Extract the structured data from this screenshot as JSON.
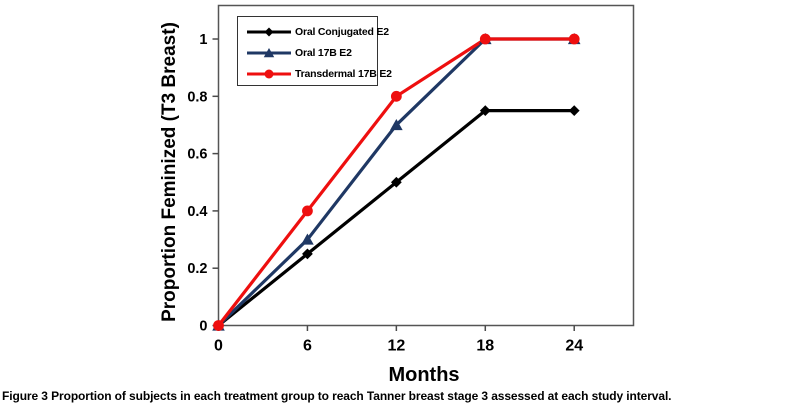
{
  "figure": {
    "caption_prefix": "Figure 3",
    "caption_text": " Proportion of subjects in each treatment group to reach Tanner breast stage 3 assessed at each study interval."
  },
  "chart_data": {
    "type": "line",
    "title": "",
    "xlabel": "Months",
    "ylabel": "Proportion Feminized (T3 Breast)",
    "x": [
      0,
      6,
      12,
      18,
      24
    ],
    "xticks": [
      0,
      6,
      12,
      18,
      24
    ],
    "xtick_labels": [
      "0",
      "6",
      "12",
      "18",
      "24"
    ],
    "yticks": [
      0,
      0.2,
      0.4,
      0.6,
      0.8,
      1
    ],
    "ytick_labels": [
      "0",
      "0.2",
      "0.4",
      "0.6",
      "0.8",
      "1"
    ],
    "xlim": [
      0,
      28
    ],
    "ylim": [
      0,
      1.117
    ],
    "grid": false,
    "legend_position": "top-left",
    "series": [
      {
        "name": "Oral Conjugated E2",
        "color": "#000000",
        "marker": "diamond",
        "values": [
          0,
          0.25,
          0.5,
          0.75,
          0.75
        ]
      },
      {
        "name": "Oral 17B E2",
        "color": "#1f3864",
        "marker": "triangle",
        "values": [
          0,
          0.3,
          0.7,
          1,
          1
        ]
      },
      {
        "name": "Transdermal 17B E2",
        "color": "#ee0f0f",
        "marker": "circle",
        "values": [
          0,
          0.4,
          0.8,
          1,
          1
        ]
      }
    ],
    "colors": {
      "axis": "#555555",
      "tick": "#4a4a4a",
      "text": "#000000",
      "plot_background": "#ffffff"
    }
  }
}
